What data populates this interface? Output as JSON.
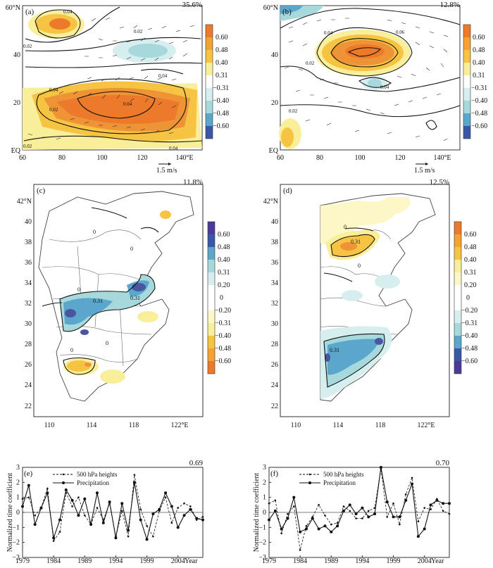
{
  "panel_a": {
    "label": "(a)",
    "percent": "35.6%",
    "y_ticks": [
      "60°N",
      "40",
      "20",
      "EQ"
    ],
    "x_ticks": [
      "60",
      "80",
      "100",
      "120",
      "140°E"
    ],
    "vector_scale": "1.5 m/s",
    "contour_labels": [
      "0.04",
      "0.02",
      "0.02",
      "0.04",
      "0.04",
      "0.04",
      "0.02",
      "0.04",
      "0.02"
    ],
    "legend": [
      "0.60",
      "0.48",
      "0.40",
      "0.31",
      "−0.31",
      "−0.40",
      "−0.48",
      "−0.60"
    ]
  },
  "panel_b": {
    "label": "(b)",
    "percent": "12.8%",
    "y_ticks": [
      "60°N",
      "40",
      "20",
      "EQ"
    ],
    "x_ticks": [
      "60",
      "80",
      "100",
      "120",
      "140°E"
    ],
    "vector_scale": "1.5 m/s",
    "contour_labels": [
      "0.04",
      "0.06",
      "0.02",
      "0.04",
      "0.02"
    ],
    "legend": [
      "0.60",
      "0.48",
      "0.40",
      "0.31",
      "−0.31",
      "−0.40",
      "−0.48",
      "−0.60"
    ]
  },
  "panel_c": {
    "label": "(c)",
    "percent": "11.8%",
    "y_ticks": [
      "42°N",
      "40",
      "38",
      "36",
      "34",
      "32",
      "30",
      "28",
      "26",
      "24",
      "22"
    ],
    "x_ticks": [
      "110",
      "114",
      "118",
      "122°E"
    ],
    "contour_labels": [
      "0",
      "0",
      "0",
      "0.31",
      "0.31",
      "0",
      "0"
    ],
    "legend": [
      "0.60",
      "0.48",
      "0.40",
      "0.31",
      "0.20",
      "0",
      "−0.20",
      "−0.31",
      "−0.40",
      "−0.48",
      "−0.60"
    ]
  },
  "panel_d": {
    "label": "(d)",
    "percent": "12.5%",
    "y_ticks": [
      "42°N",
      "40",
      "38",
      "36",
      "34",
      "32",
      "30",
      "28",
      "26",
      "24",
      "22"
    ],
    "x_ticks": [
      "110",
      "114",
      "118",
      "122°E"
    ],
    "contour_labels": [
      "0.31",
      "0",
      "0",
      "0.31"
    ],
    "legend": [
      "0.60",
      "0.48",
      "0.40",
      "0.31",
      "0.20",
      "0",
      "−0.20",
      "−0.31",
      "−0.40",
      "−0.48",
      "−0.60"
    ]
  },
  "chart_data": [
    {
      "panel": "(e)",
      "type": "line",
      "corr": "0.69",
      "ylabel": "Normalized time coefficient",
      "xlabel": "Year",
      "x_ticks": [
        "1979",
        "1984",
        "1989",
        "1994",
        "1999",
        "2004"
      ],
      "y_ticks": [
        "3",
        "2",
        "1",
        "0",
        "−1",
        "−2",
        "−3"
      ],
      "ylim": [
        -3,
        3
      ],
      "years": [
        1979,
        1980,
        1981,
        1982,
        1983,
        1984,
        1985,
        1986,
        1987,
        1988,
        1989,
        1990,
        1991,
        1992,
        1993,
        1994,
        1995,
        1996,
        1997,
        1998,
        1999,
        2000,
        2001,
        2002,
        2003,
        2004,
        2005,
        2006,
        2007,
        2008
      ],
      "series": [
        {
          "name": "500 hPa heights",
          "style": "dashed",
          "values": [
            0.9,
            1.0,
            -0.2,
            0.3,
            1.6,
            -1.9,
            -1.3,
            1.3,
            0.4,
            1.0,
            -0.2,
            -0.8,
            0.3,
            -0.5,
            0.6,
            -1.6,
            0.1,
            -1.6,
            2.5,
            0.2,
            -0.9,
            -1.6,
            0.1,
            1.0,
            -0.7,
            0.3,
            0.6,
            0.4,
            -0.5,
            -0.3
          ]
        },
        {
          "name": "Precipitation",
          "style": "solid",
          "values": [
            0.4,
            1.8,
            -0.8,
            0.3,
            1.3,
            -1.7,
            -0.5,
            1.5,
            0.8,
            -0.2,
            0.9,
            -0.8,
            1.3,
            -0.7,
            0.7,
            -1.7,
            0.6,
            -1.2,
            2.0,
            -0.5,
            -1.8,
            -0.1,
            0.2,
            1.3,
            0.4,
            -1.0,
            -0.2,
            0.2,
            -0.4,
            -0.5
          ]
        }
      ]
    },
    {
      "panel": "(f)",
      "type": "line",
      "corr": "0.70",
      "ylabel": "Normalized time coefficient",
      "xlabel": "Year",
      "x_ticks": [
        "1979",
        "1984",
        "1989",
        "1994",
        "1999",
        "2004"
      ],
      "y_ticks": [
        "3",
        "2",
        "1",
        "0",
        "−1",
        "−2",
        "−3"
      ],
      "ylim": [
        -3,
        3
      ],
      "years": [
        1979,
        1980,
        1981,
        1982,
        1983,
        1984,
        1985,
        1986,
        1987,
        1988,
        1989,
        1990,
        1991,
        1992,
        1993,
        1994,
        1995,
        1996,
        1997,
        1998,
        1999,
        2000,
        2001,
        2002,
        2003,
        2004,
        2005,
        2006,
        2007,
        2008
      ],
      "series": [
        {
          "name": "500 hPa heights",
          "style": "dashed",
          "values": [
            0.6,
            0.8,
            -1.4,
            -0.1,
            0.4,
            -2.5,
            -0.9,
            -0.3,
            0.5,
            -0.2,
            -0.8,
            -0.7,
            0.4,
            0.1,
            -0.4,
            -0.4,
            0.1,
            0.3,
            2.9,
            -0.3,
            0.6,
            -0.8,
            1.2,
            2.3,
            -0.6,
            0.3,
            0.2,
            0.9,
            0.1,
            -0.1
          ]
        },
        {
          "name": "Precipitation",
          "style": "solid",
          "values": [
            -0.5,
            0.1,
            -1.1,
            -0.4,
            1.0,
            -1.3,
            -1.1,
            -0.4,
            -1.1,
            -0.9,
            -1.3,
            -0.9,
            0.1,
            0.5,
            -0.1,
            0.3,
            -0.3,
            -0.1,
            3.0,
            0.7,
            -0.3,
            -0.3,
            0.8,
            1.9,
            -1.6,
            -1.1,
            0.5,
            0.8,
            0.6,
            0.6
          ]
        }
      ]
    }
  ]
}
